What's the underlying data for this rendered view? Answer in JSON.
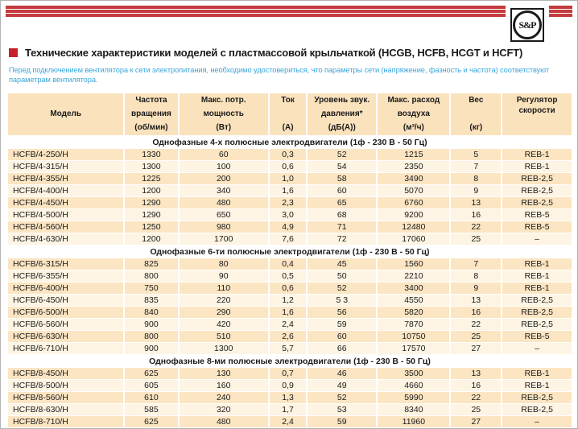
{
  "brand": {
    "logo_text": "S&P"
  },
  "header": {
    "title": "Технические характеристики моделей с пластмассовой крыльчаткой (HCGB, HCFB, HCGT и HCFT)",
    "intro": "Перед подключением вентилятора к сети электропитания, необходимо удостовериться, что параметры сети (напряжение, фазность и частота) соответствуют параметрам вентилятора."
  },
  "colors": {
    "stripe_red": "#c43b3f",
    "bullet_red": "#c8202a",
    "intro_blue": "#3aa6d9",
    "peach": "#fae2bc",
    "row_odd": "#fbe5c2",
    "row_even": "#fef4e3"
  },
  "table": {
    "columns": [
      {
        "id": "model",
        "lines": [
          "Модель"
        ]
      },
      {
        "id": "speed",
        "lines": [
          "Частота",
          "вращения",
          "(об/мин)"
        ]
      },
      {
        "id": "power",
        "lines": [
          "Макс. потр.",
          "мощность",
          "(Вт)"
        ]
      },
      {
        "id": "current",
        "lines": [
          "Ток",
          "(А)"
        ]
      },
      {
        "id": "noise",
        "lines": [
          "Уровень звук.",
          "давления*",
          "(дБ(А))"
        ]
      },
      {
        "id": "airflow",
        "lines": [
          "Макс. расход",
          "воздуха",
          "(м³/ч)"
        ]
      },
      {
        "id": "weight",
        "lines": [
          "Вес",
          "(кг)"
        ]
      },
      {
        "id": "regulator",
        "lines": [
          "Регулятор",
          "скорости"
        ]
      }
    ],
    "sections": [
      {
        "title": "Однофазные 4-х полюсные электродвигатели (1ф - 230 В - 50 Гц)",
        "rows": [
          [
            "HCFB/4-250/H",
            "1330",
            "60",
            "0,3",
            "52",
            "1215",
            "5",
            "REB-1"
          ],
          [
            "HCFB/4-315/H",
            "1300",
            "100",
            "0,6",
            "54",
            "2350",
            "7",
            "REB-1"
          ],
          [
            "HCFB/4-355/H",
            "1225",
            "200",
            "1,0",
            "58",
            "3490",
            "8",
            "REB-2,5"
          ],
          [
            "HCFB/4-400/H",
            "1200",
            "340",
            "1,6",
            "60",
            "5070",
            "9",
            "REB-2,5"
          ],
          [
            "HCFB/4-450/H",
            "1290",
            "480",
            "2,3",
            "65",
            "6760",
            "13",
            "REB-2,5"
          ],
          [
            "HCFB/4-500/H",
            "1290",
            "650",
            "3,0",
            "68",
            "9200",
            "16",
            "REB-5"
          ],
          [
            "HCFB/4-560/H",
            "1250",
            "980",
            "4,9",
            "71",
            "12480",
            "22",
            "REB-5"
          ],
          [
            "HCFB/4-630/H",
            "1200",
            "1700",
            "7,6",
            "72",
            "17060",
            "25",
            "–"
          ]
        ]
      },
      {
        "title": "Однофазные 6-ти полюсные электродвигатели (1ф - 230 В - 50 Гц)",
        "rows": [
          [
            "HCFB/6-315/H",
            "825",
            "80",
            "0,4",
            "45",
            "1560",
            "7",
            "REB-1"
          ],
          [
            "HCFB/6-355/H",
            "800",
            "90",
            "0,5",
            "50",
            "2210",
            "8",
            "REB-1"
          ],
          [
            "HCFB/6-400/H",
            "750",
            "110",
            "0,6",
            "52",
            "3400",
            "9",
            "REB-1"
          ],
          [
            "HCFB/6-450/H",
            "835",
            "220",
            "1,2",
            "5 3",
            "4550",
            "13",
            "REB-2,5"
          ],
          [
            "HCFB/6-500/H",
            "840",
            "290",
            "1,6",
            "56",
            "5820",
            "16",
            "REB-2,5"
          ],
          [
            "HCFB/6-560/H",
            "900",
            "420",
            "2,4",
            "59",
            "7870",
            "22",
            "REB-2,5"
          ],
          [
            "HCFB/6-630/H",
            "800",
            "510",
            "2,6",
            "60",
            "10750",
            "25",
            "REB-5"
          ],
          [
            "HCFB/6-710/H",
            "900",
            "1300",
            "5,7",
            "66",
            "17570",
            "27",
            "–"
          ]
        ]
      },
      {
        "title": "Однофазные 8-ми полюсные электродвигатели (1ф - 230 В - 50 Гц)",
        "rows": [
          [
            "HCFB/8-450/H",
            "625",
            "130",
            "0,7",
            "46",
            "3500",
            "13",
            "REB-1"
          ],
          [
            "HCFB/8-500/H",
            "605",
            "160",
            "0,9",
            "49",
            "4660",
            "16",
            "REB-1"
          ],
          [
            "HCFB/8-560/H",
            "610",
            "240",
            "1,3",
            "52",
            "5990",
            "22",
            "REB-2,5"
          ],
          [
            "HCFB/8-630/H",
            "585",
            "320",
            "1,7",
            "53",
            "8340",
            "25",
            "REB-2,5"
          ],
          [
            "HCFB/8-710/H",
            "625",
            "480",
            "2,4",
            "59",
            "11960",
            "27",
            "–"
          ]
        ]
      }
    ]
  }
}
